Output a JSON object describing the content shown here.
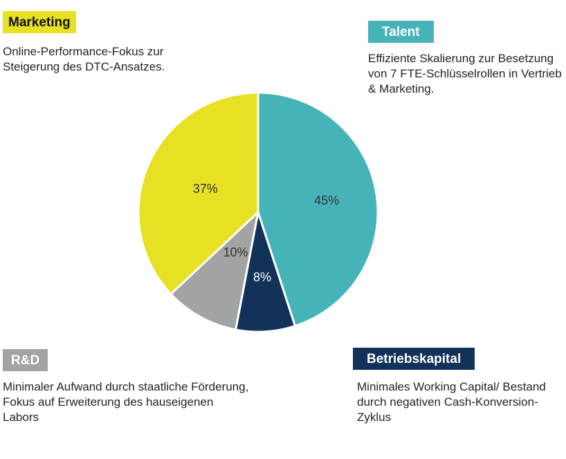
{
  "colors": {
    "talent": "#45b3b8",
    "betriebskapital": "#12325a",
    "rd": "#a2a4a3",
    "marketing": "#e8e023"
  },
  "annotations": {
    "marketing": {
      "title": "Marketing",
      "text": "Online-Performance-Fokus zur Steigerung des DTC-Ansatzes."
    },
    "talent": {
      "title": "Talent",
      "text": "Effiziente Skalierung zur Besetzung von 7 FTE-Schlüsselrollen in Vertrieb & Marketing."
    },
    "rd": {
      "title": "R&D",
      "text": "Minimaler Aufwand durch staatliche Förderung, Fokus auf Erweiterung des hauseigenen Labors"
    },
    "betriebskapital": {
      "title": "Betriebskapital",
      "text": "Minimales Working Capital/ Bestand durch negativen Cash-Konversion-Zyklus"
    }
  },
  "chart_data": {
    "type": "pie",
    "title": "",
    "slices": [
      {
        "label": "Talent",
        "value": 45,
        "display": "45%",
        "color": "#45b3b8",
        "label_color": "#333333"
      },
      {
        "label": "Betriebskapital",
        "value": 8,
        "display": "8%",
        "color": "#12325a",
        "label_color": "#ffffff"
      },
      {
        "label": "R&D",
        "value": 10,
        "display": "10%",
        "color": "#a2a4a3",
        "label_color": "#333333"
      },
      {
        "label": "Marketing",
        "value": 37,
        "display": "37%",
        "color": "#e8e023",
        "label_color": "#333333"
      }
    ],
    "start": "12 o'clock",
    "direction": "clockwise"
  }
}
